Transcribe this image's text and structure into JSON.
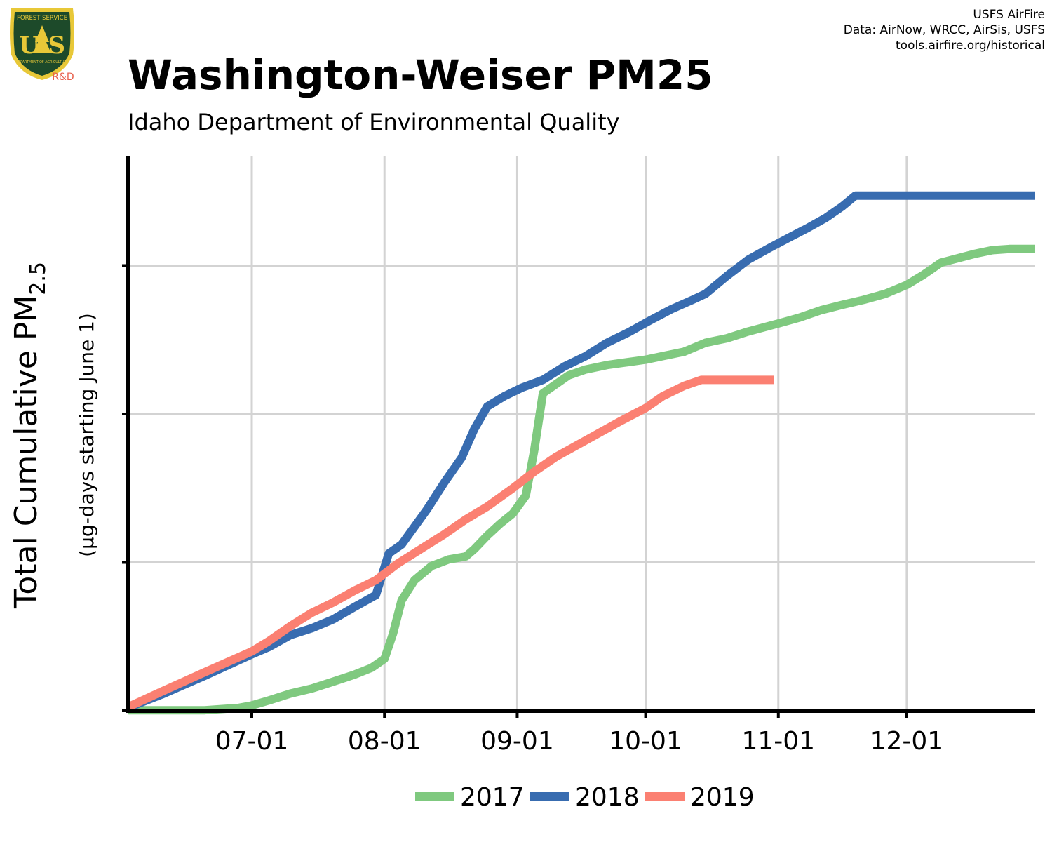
{
  "header": {
    "title": "Washington-Weiser PM25",
    "subtitle": "Idaho Department of Environmental Quality",
    "credits": [
      "USFS AirFire",
      "Data: AirNow, WRCC, AirSis, USFS",
      "tools.airfire.org/historical"
    ]
  },
  "logo": {
    "arc_text": "FOREST SERVICE",
    "letters": "U S",
    "bottom_text": "DEPARTMENT OF AGRICULTURE",
    "tag": "R&D",
    "colors": {
      "shield": "#1d4a2a",
      "border": "#e8c838",
      "tag": "#e8604c"
    }
  },
  "chart_data": {
    "type": "line",
    "title": "Washington-Weiser PM25",
    "subtitle": "Idaho Department of Environmental Quality",
    "ylabel": {
      "main": "Total Cumulative PM",
      "sub": "2.5",
      "note": "(µg-days starting June 1)"
    },
    "x_ticks": [
      "07-01",
      "08-01",
      "09-01",
      "10-01",
      "11-01",
      "12-01"
    ],
    "x_tick_dates": [
      "07-01",
      "08-01",
      "09-01",
      "10-01",
      "11-01",
      "12-01"
    ],
    "xlim": [
      "06-02",
      "12-31"
    ],
    "ylim": [
      0,
      1.87
    ],
    "y_gridlines": [
      0.5,
      1.0,
      1.5
    ],
    "y_tick_labels_shown": false,
    "grid": true,
    "legend": {
      "position": "bottom",
      "entries": [
        "2017",
        "2018",
        "2019"
      ]
    },
    "series": [
      {
        "name": "2017",
        "color": "#7fc97f",
        "points": [
          [
            "06-02",
            0.002
          ],
          [
            "06-20",
            0.002
          ],
          [
            "06-28",
            0.01
          ],
          [
            "07-01",
            0.018
          ],
          [
            "07-05",
            0.035
          ],
          [
            "07-10",
            0.058
          ],
          [
            "07-15",
            0.075
          ],
          [
            "07-20",
            0.098
          ],
          [
            "07-25",
            0.122
          ],
          [
            "07-29",
            0.145
          ],
          [
            "08-01",
            0.175
          ],
          [
            "08-03",
            0.26
          ],
          [
            "08-05",
            0.372
          ],
          [
            "08-08",
            0.44
          ],
          [
            "08-12",
            0.488
          ],
          [
            "08-16",
            0.51
          ],
          [
            "08-20",
            0.52
          ],
          [
            "08-22",
            0.545
          ],
          [
            "08-25",
            0.59
          ],
          [
            "08-28",
            0.63
          ],
          [
            "08-31",
            0.665
          ],
          [
            "09-03",
            0.725
          ],
          [
            "09-05",
            0.88
          ],
          [
            "09-07",
            1.07
          ],
          [
            "09-10",
            1.1
          ],
          [
            "09-13",
            1.13
          ],
          [
            "09-17",
            1.15
          ],
          [
            "09-22",
            1.165
          ],
          [
            "09-27",
            1.175
          ],
          [
            "10-01",
            1.183
          ],
          [
            "10-05",
            1.195
          ],
          [
            "10-10",
            1.21
          ],
          [
            "10-15",
            1.24
          ],
          [
            "10-20",
            1.255
          ],
          [
            "10-25",
            1.278
          ],
          [
            "11-01",
            1.305
          ],
          [
            "11-06",
            1.325
          ],
          [
            "11-11",
            1.35
          ],
          [
            "11-16",
            1.368
          ],
          [
            "11-21",
            1.385
          ],
          [
            "11-26",
            1.405
          ],
          [
            "12-01",
            1.435
          ],
          [
            "12-05",
            1.47
          ],
          [
            "12-09",
            1.51
          ],
          [
            "12-13",
            1.525
          ],
          [
            "12-17",
            1.54
          ],
          [
            "12-21",
            1.552
          ],
          [
            "12-25",
            1.556
          ],
          [
            "12-31",
            1.556
          ]
        ]
      },
      {
        "name": "2018",
        "color": "#386cb0",
        "points": [
          [
            "06-02",
            0.01
          ],
          [
            "06-10",
            0.055
          ],
          [
            "06-20",
            0.118
          ],
          [
            "07-01",
            0.19
          ],
          [
            "07-05",
            0.215
          ],
          [
            "07-10",
            0.255
          ],
          [
            "07-15",
            0.278
          ],
          [
            "07-20",
            0.308
          ],
          [
            "07-25",
            0.35
          ],
          [
            "07-30",
            0.39
          ],
          [
            "08-02",
            0.53
          ],
          [
            "08-05",
            0.56
          ],
          [
            "08-08",
            0.62
          ],
          [
            "08-11",
            0.68
          ],
          [
            "08-15",
            0.77
          ],
          [
            "08-19",
            0.852
          ],
          [
            "08-22",
            0.95
          ],
          [
            "08-25",
            1.025
          ],
          [
            "08-29",
            1.06
          ],
          [
            "09-02",
            1.088
          ],
          [
            "09-07",
            1.115
          ],
          [
            "09-12",
            1.16
          ],
          [
            "09-17",
            1.195
          ],
          [
            "09-22",
            1.24
          ],
          [
            "09-27",
            1.275
          ],
          [
            "10-02",
            1.315
          ],
          [
            "10-07",
            1.353
          ],
          [
            "10-12",
            1.385
          ],
          [
            "10-15",
            1.405
          ],
          [
            "10-20",
            1.465
          ],
          [
            "10-25",
            1.52
          ],
          [
            "10-30",
            1.56
          ],
          [
            "11-04",
            1.598
          ],
          [
            "11-08",
            1.628
          ],
          [
            "11-12",
            1.66
          ],
          [
            "11-16",
            1.7
          ],
          [
            "11-19",
            1.736
          ],
          [
            "11-24",
            1.736
          ],
          [
            "12-31",
            1.736
          ]
        ]
      },
      {
        "name": "2019",
        "color": "#fb8072",
        "points": [
          [
            "06-02",
            0.012
          ],
          [
            "06-10",
            0.065
          ],
          [
            "06-20",
            0.13
          ],
          [
            "07-01",
            0.2
          ],
          [
            "07-05",
            0.235
          ],
          [
            "07-10",
            0.285
          ],
          [
            "07-15",
            0.33
          ],
          [
            "07-20",
            0.365
          ],
          [
            "07-25",
            0.405
          ],
          [
            "07-30",
            0.44
          ],
          [
            "08-04",
            0.495
          ],
          [
            "08-10",
            0.55
          ],
          [
            "08-15",
            0.595
          ],
          [
            "08-20",
            0.645
          ],
          [
            "08-25",
            0.688
          ],
          [
            "08-31",
            0.75
          ],
          [
            "09-05",
            0.806
          ],
          [
            "09-10",
            0.855
          ],
          [
            "09-15",
            0.895
          ],
          [
            "09-20",
            0.935
          ],
          [
            "09-25",
            0.975
          ],
          [
            "10-01",
            1.02
          ],
          [
            "10-05",
            1.06
          ],
          [
            "10-10",
            1.095
          ],
          [
            "10-14",
            1.115
          ],
          [
            "10-31",
            1.115
          ]
        ]
      }
    ]
  }
}
